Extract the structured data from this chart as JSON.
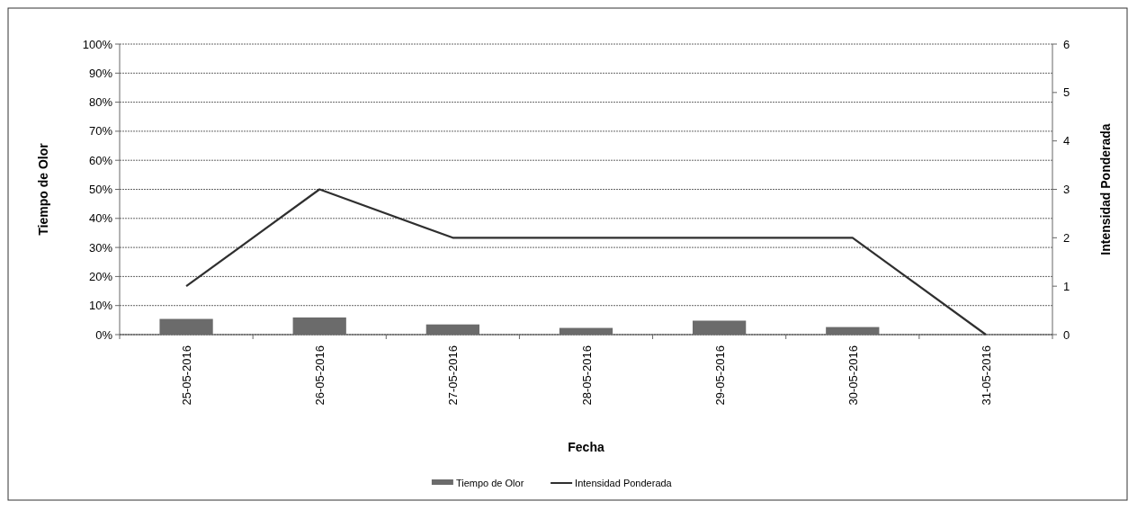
{
  "chart_data": {
    "type": "bar",
    "xlabel": "Fecha",
    "ylabel": "Tiempo de Olor",
    "y2label": "Intensidad Ponderada",
    "categories": [
      "25-05-2016",
      "26-05-2016",
      "27-05-2016",
      "28-05-2016",
      "29-05-2016",
      "30-05-2016",
      "31-05-2016"
    ],
    "series": [
      {
        "name": "Tiempo de Olor",
        "color": "#6b6b6b",
        "values": [
          5.4,
          5.9,
          3.5,
          2.3,
          4.8,
          2.6,
          0
        ]
      },
      {
        "name": "Intensidad Ponderada",
        "type": "line",
        "axis": "y2",
        "color": "#2f2f2f",
        "values": [
          1,
          3,
          2,
          2,
          2,
          2,
          0
        ]
      }
    ],
    "ylim": [
      0,
      100
    ],
    "yticks": [
      {
        "value": 0,
        "label": "0%"
      },
      {
        "value": 10,
        "label": "10%"
      },
      {
        "value": 20,
        "label": "20%"
      },
      {
        "value": 30,
        "label": "30%"
      },
      {
        "value": 40,
        "label": "40%"
      },
      {
        "value": 50,
        "label": "50%"
      },
      {
        "value": 60,
        "label": "60%"
      },
      {
        "value": 70,
        "label": "70%"
      },
      {
        "value": 80,
        "label": "80%"
      },
      {
        "value": 90,
        "label": "90%"
      },
      {
        "value": 100,
        "label": "100%"
      }
    ],
    "y2lim": [
      0,
      6
    ],
    "y2ticks": [
      0,
      1,
      2,
      3,
      4,
      5,
      6
    ],
    "grid": "y",
    "legend": "bottom",
    "marker": "none",
    "line_style": "solid"
  }
}
